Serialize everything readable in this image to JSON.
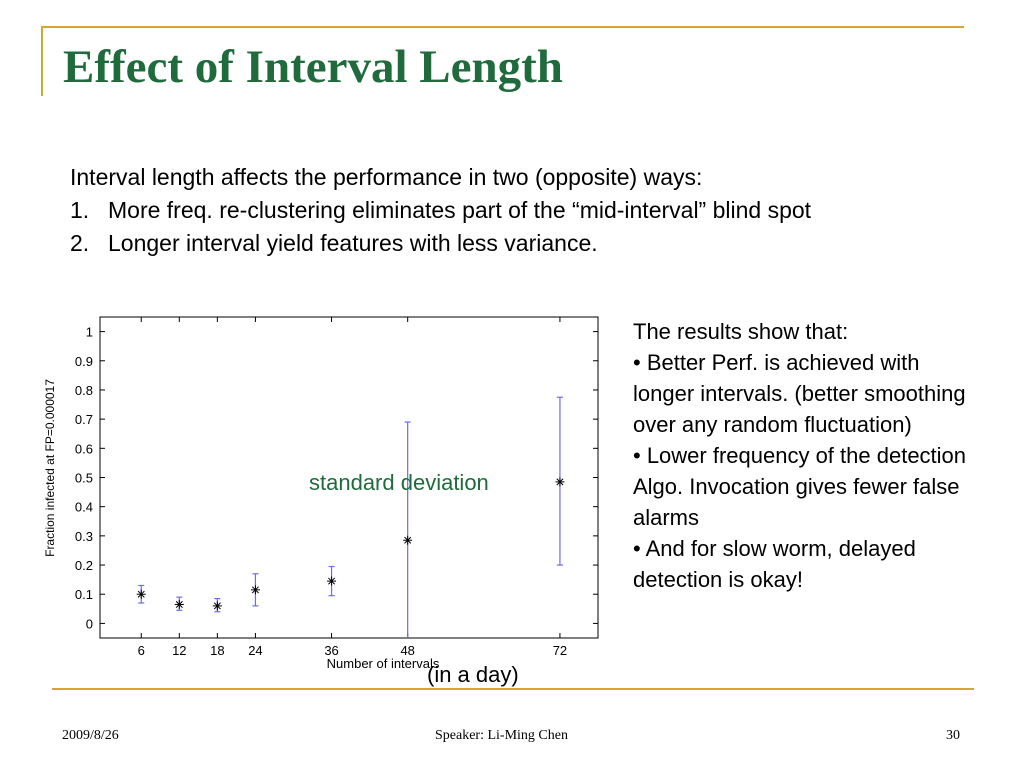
{
  "slide": {
    "title": "Effect of Interval Length",
    "intro": "Interval length affects the performance in two (opposite) ways:",
    "points": [
      {
        "num": "1.",
        "text": "More freq. re-clustering eliminates part of the “mid-interval” blind spot"
      },
      {
        "num": "2.",
        "text": "Longer interval yield features with less variance."
      }
    ],
    "results": [
      "The results show that:",
      "• Better Perf. is achieved with longer intervals. (better smoothing over any random fluctuation)",
      "• Lower frequency of the detection Algo. Invocation gives fewer false alarms",
      "• And for slow worm, delayed detection is okay!"
    ],
    "annotation": "standard deviation",
    "x_note": "(in a day)",
    "footer": {
      "date": "2009/8/26",
      "speaker": "Speaker: Li-Ming Chen",
      "page": "30"
    }
  },
  "colors": {
    "title": "#1f6b3c",
    "frame": "#d6a534",
    "errorbar": "#6d6bf0",
    "marker": "#000000"
  },
  "chart_data": {
    "type": "scatter",
    "xlabel": "Number of intervals",
    "ylabel": "Fraction infected at FP=0.000017",
    "xticks": [
      "6",
      "12",
      "18",
      "24",
      "36",
      "48",
      "72"
    ],
    "yticks": [
      "0",
      "0.1",
      "0.2",
      "0.3",
      "0.4",
      "0.5",
      "0.6",
      "0.7",
      "0.8",
      "0.9",
      "1"
    ],
    "ylim": [
      -0.05,
      1.05
    ],
    "grid": false,
    "series": [
      {
        "marker": "asterisk",
        "points": [
          {
            "x": "6",
            "y": 0.1,
            "y_low": 0.07,
            "y_high": 0.13
          },
          {
            "x": "12",
            "y": 0.065,
            "y_low": 0.045,
            "y_high": 0.09
          },
          {
            "x": "18",
            "y": 0.06,
            "y_low": 0.04,
            "y_high": 0.085
          },
          {
            "x": "24",
            "y": 0.115,
            "y_low": 0.06,
            "y_high": 0.17
          },
          {
            "x": "36",
            "y": 0.145,
            "y_low": 0.095,
            "y_high": 0.195
          },
          {
            "x": "48",
            "y": 0.285,
            "y_low": -0.05,
            "y_high": 0.69
          },
          {
            "x": "72",
            "y": 0.485,
            "y_low": 0.2,
            "y_high": 0.775
          }
        ]
      }
    ]
  }
}
